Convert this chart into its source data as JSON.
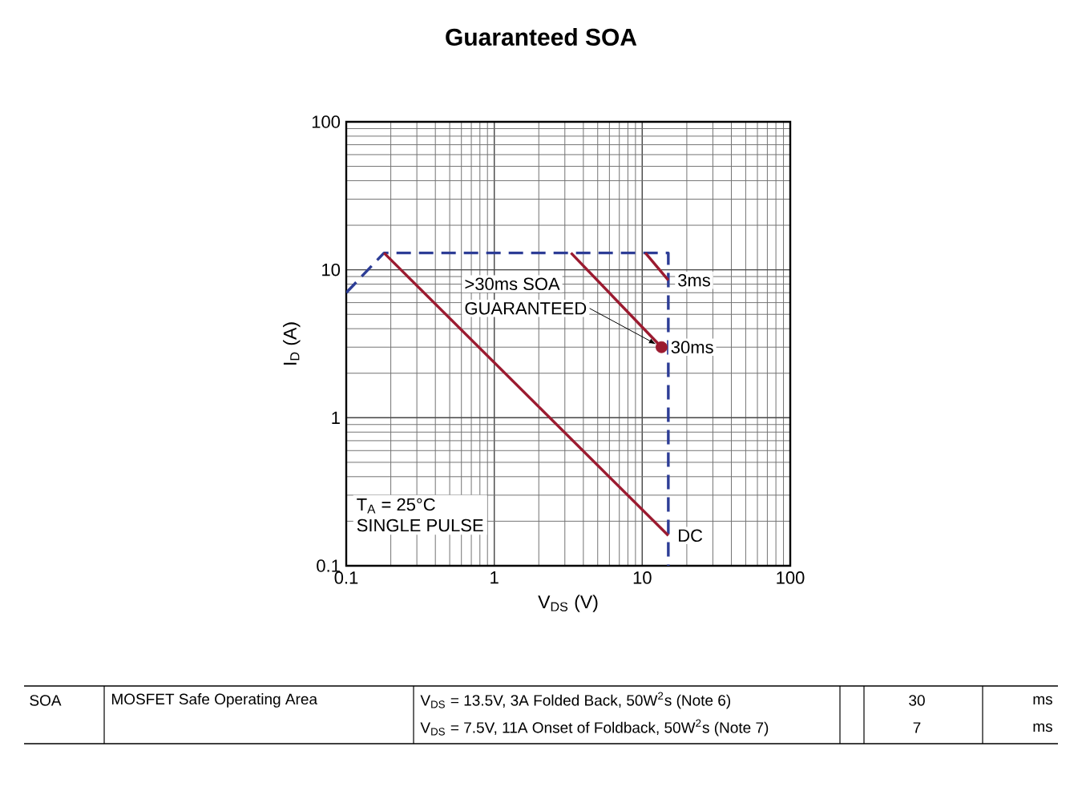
{
  "chart_data": {
    "type": "line",
    "title": "Guaranteed SOA",
    "xlabel": "V$_{DS}$ (V)",
    "ylabel": "I$_{D}$ (A)",
    "log": "xy",
    "grid": true,
    "xlim": [
      0.1,
      100
    ],
    "ylim": [
      0.1,
      100
    ],
    "xticks": [
      0.1,
      1,
      10,
      100
    ],
    "yticks": [
      0.1,
      1,
      10,
      100
    ],
    "series": [
      {
        "line_style": "dashed",
        "color": "#2d3d96",
        "x": [
          0.1,
          0.18,
          15,
          15
        ],
        "values": [
          7,
          13,
          13,
          0.1
        ]
      },
      {
        "line_style": "solid",
        "name": "DC",
        "color": "#9b1b30",
        "x": [
          0.18,
          15
        ],
        "values": [
          13,
          0.16
        ]
      },
      {
        "line_style": "solid",
        "name": "30ms",
        "color": "#9b1b30",
        "x": [
          3.3,
          13.5
        ],
        "values": [
          13,
          3
        ]
      },
      {
        "line_style": "solid",
        "name": "3ms",
        "color": "#9b1b30",
        "x": [
          10.5,
          15
        ],
        "values": [
          13,
          8.5
        ]
      },
      {
        "type": "scatter",
        "marker": "circle",
        "color": "#9b1b30",
        "x": [
          13.5
        ],
        "values": [
          3
        ]
      }
    ],
    "annotations": [
      ">30ms SOA",
      {
        "text": "GUARANTEED",
        "x": 13.5,
        "y": 3
      },
      "T$_{A}$ = 25°C",
      "SINGLE PULSE",
      "SOA",
      "MOSFET Safe Operating Area",
      "V$_{DS}$ = 13.5V, 3A Folded Back, 50W$^{2}$s (Note 6)",
      "30",
      "ms",
      "V$_{DS}$ = 7.5V, 11A Onset of Foldback, 50W$^{2}$s (Note 7)",
      "7",
      "ms"
    ]
  }
}
